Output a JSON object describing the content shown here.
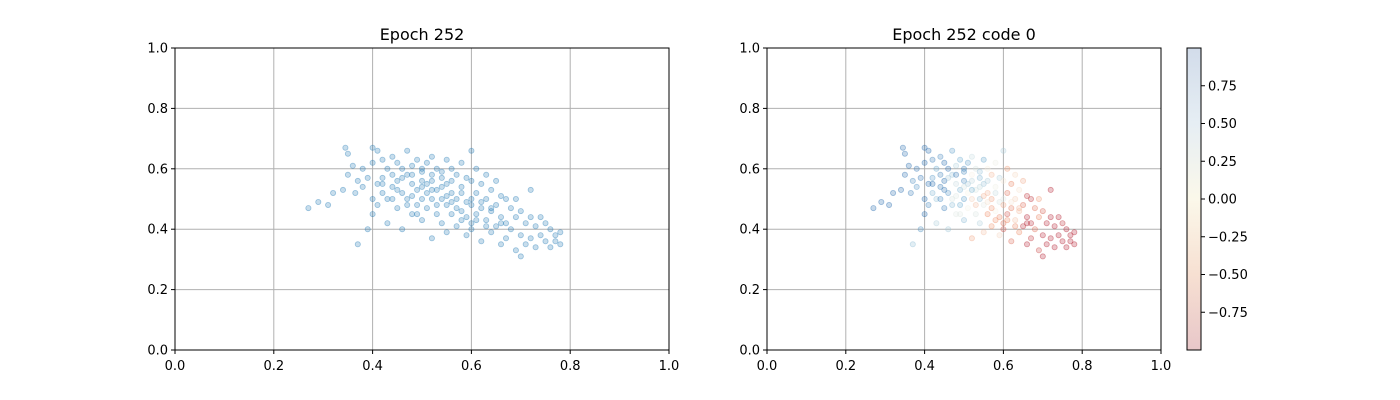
{
  "chart_data": [
    {
      "type": "scatter",
      "title": "Epoch 252",
      "xlim": [
        0,
        1
      ],
      "ylim": [
        0,
        1
      ],
      "xticks": [
        "0.0",
        "0.2",
        "0.4",
        "0.6",
        "0.8",
        "1.0"
      ],
      "yticks": [
        "0.0",
        "0.2",
        "0.4",
        "0.6",
        "0.8",
        "1.0"
      ],
      "grid": true,
      "point_color": "#1f77b4",
      "point_alpha": 0.25,
      "points_note": "~400 points, approximately centered at (0.55, 0.5), spread x 0.27-0.78, y 0.31-0.67, negative correlation",
      "points": [
        [
          0.27,
          0.47
        ],
        [
          0.29,
          0.49
        ],
        [
          0.31,
          0.48
        ],
        [
          0.32,
          0.52
        ],
        [
          0.34,
          0.53
        ],
        [
          0.345,
          0.67
        ],
        [
          0.35,
          0.65
        ],
        [
          0.35,
          0.58
        ],
        [
          0.36,
          0.61
        ],
        [
          0.365,
          0.52
        ],
        [
          0.37,
          0.35
        ],
        [
          0.37,
          0.56
        ],
        [
          0.38,
          0.54
        ],
        [
          0.38,
          0.6
        ],
        [
          0.39,
          0.57
        ],
        [
          0.39,
          0.4
        ],
        [
          0.4,
          0.67
        ],
        [
          0.4,
          0.62
        ],
        [
          0.4,
          0.5
        ],
        [
          0.4,
          0.45
        ],
        [
          0.41,
          0.66
        ],
        [
          0.41,
          0.55
        ],
        [
          0.41,
          0.48
        ],
        [
          0.42,
          0.63
        ],
        [
          0.42,
          0.57
        ],
        [
          0.42,
          0.52
        ],
        [
          0.43,
          0.6
        ],
        [
          0.43,
          0.5
        ],
        [
          0.43,
          0.42
        ],
        [
          0.44,
          0.64
        ],
        [
          0.44,
          0.58
        ],
        [
          0.44,
          0.54
        ],
        [
          0.45,
          0.62
        ],
        [
          0.45,
          0.56
        ],
        [
          0.45,
          0.47
        ],
        [
          0.46,
          0.6
        ],
        [
          0.46,
          0.52
        ],
        [
          0.46,
          0.4
        ],
        [
          0.47,
          0.66
        ],
        [
          0.47,
          0.58
        ],
        [
          0.47,
          0.5
        ],
        [
          0.48,
          0.61
        ],
        [
          0.48,
          0.55
        ],
        [
          0.48,
          0.45
        ],
        [
          0.49,
          0.63
        ],
        [
          0.49,
          0.53
        ],
        [
          0.49,
          0.48
        ],
        [
          0.5,
          0.6
        ],
        [
          0.5,
          0.56
        ],
        [
          0.5,
          0.5
        ],
        [
          0.5,
          0.43
        ],
        [
          0.51,
          0.62
        ],
        [
          0.51,
          0.55
        ],
        [
          0.51,
          0.47
        ],
        [
          0.52,
          0.64
        ],
        [
          0.52,
          0.58
        ],
        [
          0.52,
          0.5
        ],
        [
          0.52,
          0.37
        ],
        [
          0.53,
          0.6
        ],
        [
          0.53,
          0.53
        ],
        [
          0.53,
          0.45
        ],
        [
          0.54,
          0.57
        ],
        [
          0.54,
          0.5
        ],
        [
          0.54,
          0.42
        ],
        [
          0.55,
          0.63
        ],
        [
          0.55,
          0.55
        ],
        [
          0.55,
          0.48
        ],
        [
          0.55,
          0.39
        ],
        [
          0.56,
          0.6
        ],
        [
          0.56,
          0.52
        ],
        [
          0.56,
          0.45
        ],
        [
          0.57,
          0.58
        ],
        [
          0.57,
          0.5
        ],
        [
          0.57,
          0.41
        ],
        [
          0.58,
          0.62
        ],
        [
          0.58,
          0.54
        ],
        [
          0.58,
          0.46
        ],
        [
          0.59,
          0.57
        ],
        [
          0.59,
          0.49
        ],
        [
          0.59,
          0.38
        ],
        [
          0.6,
          0.66
        ],
        [
          0.6,
          0.56
        ],
        [
          0.6,
          0.48
        ],
        [
          0.6,
          0.42
        ],
        [
          0.61,
          0.6
        ],
        [
          0.61,
          0.52
        ],
        [
          0.61,
          0.45
        ],
        [
          0.62,
          0.55
        ],
        [
          0.62,
          0.47
        ],
        [
          0.62,
          0.36
        ],
        [
          0.63,
          0.58
        ],
        [
          0.63,
          0.5
        ],
        [
          0.63,
          0.43
        ],
        [
          0.64,
          0.53
        ],
        [
          0.64,
          0.46
        ],
        [
          0.64,
          0.39
        ],
        [
          0.65,
          0.56
        ],
        [
          0.65,
          0.48
        ],
        [
          0.65,
          0.41
        ],
        [
          0.66,
          0.51
        ],
        [
          0.66,
          0.44
        ],
        [
          0.66,
          0.35
        ],
        [
          0.67,
          0.5
        ],
        [
          0.67,
          0.42
        ],
        [
          0.67,
          0.37
        ],
        [
          0.68,
          0.47
        ],
        [
          0.68,
          0.4
        ],
        [
          0.69,
          0.5
        ],
        [
          0.69,
          0.44
        ],
        [
          0.69,
          0.33
        ],
        [
          0.7,
          0.46
        ],
        [
          0.7,
          0.38
        ],
        [
          0.7,
          0.31
        ],
        [
          0.71,
          0.42
        ],
        [
          0.71,
          0.35
        ],
        [
          0.72,
          0.53
        ],
        [
          0.72,
          0.44
        ],
        [
          0.72,
          0.37
        ],
        [
          0.73,
          0.41
        ],
        [
          0.73,
          0.34
        ],
        [
          0.74,
          0.44
        ],
        [
          0.74,
          0.38
        ],
        [
          0.75,
          0.42
        ],
        [
          0.75,
          0.36
        ],
        [
          0.76,
          0.4
        ],
        [
          0.76,
          0.34
        ],
        [
          0.77,
          0.38
        ],
        [
          0.77,
          0.36
        ],
        [
          0.78,
          0.39
        ],
        [
          0.78,
          0.35
        ],
        [
          0.46,
          0.57
        ],
        [
          0.48,
          0.51
        ],
        [
          0.5,
          0.54
        ],
        [
          0.52,
          0.56
        ],
        [
          0.54,
          0.54
        ],
        [
          0.56,
          0.56
        ],
        [
          0.58,
          0.52
        ],
        [
          0.6,
          0.5
        ],
        [
          0.62,
          0.49
        ],
        [
          0.64,
          0.47
        ],
        [
          0.44,
          0.5
        ],
        [
          0.47,
          0.48
        ],
        [
          0.49,
          0.45
        ],
        [
          0.51,
          0.52
        ],
        [
          0.53,
          0.48
        ],
        [
          0.55,
          0.51
        ],
        [
          0.57,
          0.47
        ],
        [
          0.59,
          0.44
        ],
        [
          0.61,
          0.43
        ],
        [
          0.63,
          0.41
        ],
        [
          0.42,
          0.55
        ],
        [
          0.45,
          0.53
        ],
        [
          0.48,
          0.58
        ],
        [
          0.5,
          0.59
        ],
        [
          0.52,
          0.53
        ],
        [
          0.54,
          0.59
        ],
        [
          0.56,
          0.49
        ],
        [
          0.58,
          0.43
        ],
        [
          0.6,
          0.4
        ],
        [
          0.66,
          0.42
        ]
      ]
    },
    {
      "type": "scatter",
      "title": "Epoch 252 code 0",
      "xlim": [
        0,
        1
      ],
      "ylim": [
        0,
        1
      ],
      "xticks": [
        "0.0",
        "0.2",
        "0.4",
        "0.6",
        "0.8",
        "1.0"
      ],
      "yticks": [
        "0.0",
        "0.2",
        "0.4",
        "0.6",
        "0.8",
        "1.0"
      ],
      "grid": true,
      "point_alpha": 0.25,
      "colormap": "RdBu",
      "colorbar": {
        "range": [
          -1,
          1
        ],
        "ticks": [
          "0.75",
          "0.50",
          "0.25",
          "0.00",
          "−0.25",
          "−0.50",
          "−0.75"
        ],
        "tick_values": [
          0.75,
          0.5,
          0.25,
          0,
          -0.25,
          -0.5,
          -0.75
        ],
        "top_color": "#d2dcea",
        "mid_color": "#fbf8ea",
        "bottom_color": "#e8c7c9"
      }
    }
  ]
}
